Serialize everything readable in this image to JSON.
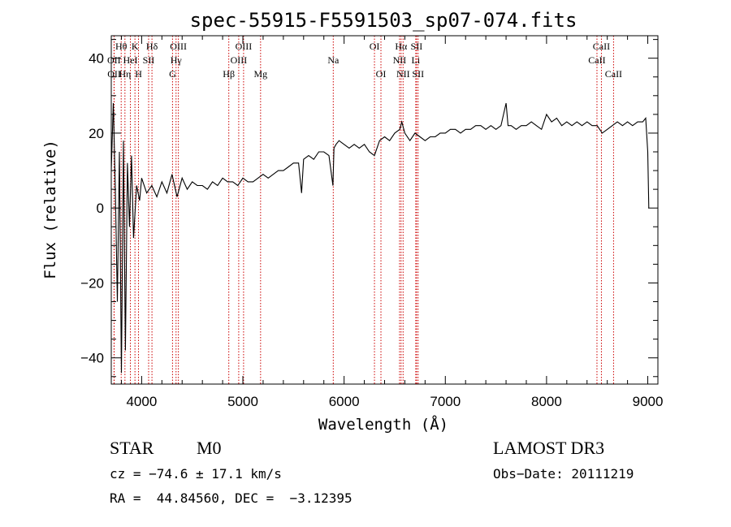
{
  "chart_data": {
    "type": "line",
    "title": "spec-55915-F5591503_sp07-074.fits",
    "xlabel": "Wavelength (Å)",
    "ylabel": "Flux (relative)",
    "xlim": [
      3700,
      9100
    ],
    "ylim": [
      -47,
      46
    ],
    "xticks": [
      4000,
      5000,
      6000,
      7000,
      8000,
      9000
    ],
    "yticks": [
      -40,
      -20,
      0,
      20,
      40
    ],
    "grid": false,
    "legend": "none",
    "series": [
      {
        "name": "flux",
        "x": [
          3700,
          3720,
          3740,
          3760,
          3780,
          3800,
          3820,
          3840,
          3860,
          3880,
          3900,
          3920,
          3950,
          3980,
          4000,
          4050,
          4100,
          4150,
          4200,
          4250,
          4300,
          4350,
          4400,
          4450,
          4500,
          4550,
          4600,
          4650,
          4700,
          4750,
          4800,
          4850,
          4900,
          4950,
          5000,
          5050,
          5100,
          5150,
          5200,
          5250,
          5300,
          5350,
          5400,
          5450,
          5500,
          5550,
          5580,
          5600,
          5650,
          5700,
          5750,
          5800,
          5850,
          5890,
          5900,
          5920,
          5950,
          6000,
          6050,
          6100,
          6150,
          6200,
          6250,
          6300,
          6350,
          6400,
          6450,
          6500,
          6550,
          6570,
          6600,
          6650,
          6700,
          6750,
          6800,
          6850,
          6900,
          6950,
          7000,
          7050,
          7100,
          7150,
          7200,
          7250,
          7300,
          7350,
          7400,
          7450,
          7500,
          7550,
          7600,
          7620,
          7650,
          7700,
          7750,
          7800,
          7850,
          7900,
          7950,
          8000,
          8050,
          8100,
          8150,
          8200,
          8250,
          8300,
          8350,
          8400,
          8450,
          8500,
          8550,
          8600,
          8650,
          8700,
          8750,
          8800,
          8850,
          8900,
          8950,
          8980,
          9000,
          9010
        ],
        "y": [
          10,
          28,
          5,
          -25,
          15,
          -44,
          18,
          -38,
          12,
          -5,
          14,
          -8,
          6,
          2,
          8,
          4,
          6,
          3,
          7,
          4,
          9,
          3,
          8,
          5,
          7,
          6,
          6,
          5,
          7,
          6,
          8,
          7,
          7,
          6,
          8,
          7,
          7,
          8,
          9,
          8,
          9,
          10,
          10,
          11,
          12,
          12,
          4,
          13,
          14,
          13,
          15,
          15,
          14,
          6,
          16,
          17,
          18,
          17,
          16,
          17,
          16,
          17,
          15,
          14,
          18,
          19,
          18,
          20,
          21,
          23,
          20,
          18,
          20,
          19,
          18,
          19,
          19,
          20,
          20,
          21,
          21,
          20,
          21,
          21,
          22,
          22,
          21,
          22,
          21,
          22,
          28,
          22,
          22,
          21,
          22,
          22,
          23,
          22,
          21,
          25,
          23,
          24,
          22,
          23,
          22,
          23,
          22,
          23,
          22,
          22,
          20,
          21,
          22,
          23,
          22,
          23,
          22,
          23,
          23,
          24,
          15,
          0
        ]
      }
    ],
    "lines": [
      {
        "label": "Hθ",
        "x": 3798,
        "row": 0
      },
      {
        "label": "OII",
        "x": 3727,
        "row": 1
      },
      {
        "label": "OII",
        "x": 3729,
        "row": 2
      },
      {
        "label": "Hη",
        "x": 3835,
        "row": 2
      },
      {
        "label": "HeI",
        "x": 3889,
        "row": 1
      },
      {
        "label": "K",
        "x": 3934,
        "row": 0
      },
      {
        "label": "H",
        "x": 3969,
        "row": 2
      },
      {
        "label": "SII",
        "x": 4069,
        "row": 1
      },
      {
        "label": "Hδ",
        "x": 4102,
        "row": 0
      },
      {
        "label": "G",
        "x": 4305,
        "row": 2
      },
      {
        "label": "Hγ",
        "x": 4340,
        "row": 1
      },
      {
        "label": "OIII",
        "x": 4363,
        "row": 0
      },
      {
        "label": "Hβ",
        "x": 4861,
        "row": 2
      },
      {
        "label": "OIII",
        "x": 4959,
        "row": 1
      },
      {
        "label": "OIII",
        "x": 5007,
        "row": 0
      },
      {
        "label": "Mg",
        "x": 5175,
        "row": 2
      },
      {
        "label": "Na",
        "x": 5893,
        "row": 1
      },
      {
        "label": "OI",
        "x": 6300,
        "row": 0
      },
      {
        "label": "OI",
        "x": 6364,
        "row": 2
      },
      {
        "label": "NII",
        "x": 6548,
        "row": 1
      },
      {
        "label": "Hα",
        "x": 6563,
        "row": 0
      },
      {
        "label": "NII",
        "x": 6583,
        "row": 2
      },
      {
        "label": "Li",
        "x": 6708,
        "row": 1
      },
      {
        "label": "SII",
        "x": 6716,
        "row": 0
      },
      {
        "label": "SII",
        "x": 6731,
        "row": 2
      },
      {
        "label": "CaII",
        "x": 8498,
        "row": 1
      },
      {
        "label": "CaII",
        "x": 8542,
        "row": 0
      },
      {
        "label": "CaII",
        "x": 8662,
        "row": 2
      }
    ]
  },
  "info": {
    "class_label": "STAR",
    "subclass": "M0",
    "survey": "LAMOST DR3",
    "cz": "cz = −74.6 ± 17.1 km/s",
    "obs_date": "Obs−Date: 20111219",
    "coords": "RA =  44.84560, DEC =  −3.12395"
  },
  "colors": {
    "spectrum": "#000000",
    "line_marker": "#cc0000",
    "axes": "#000000"
  }
}
